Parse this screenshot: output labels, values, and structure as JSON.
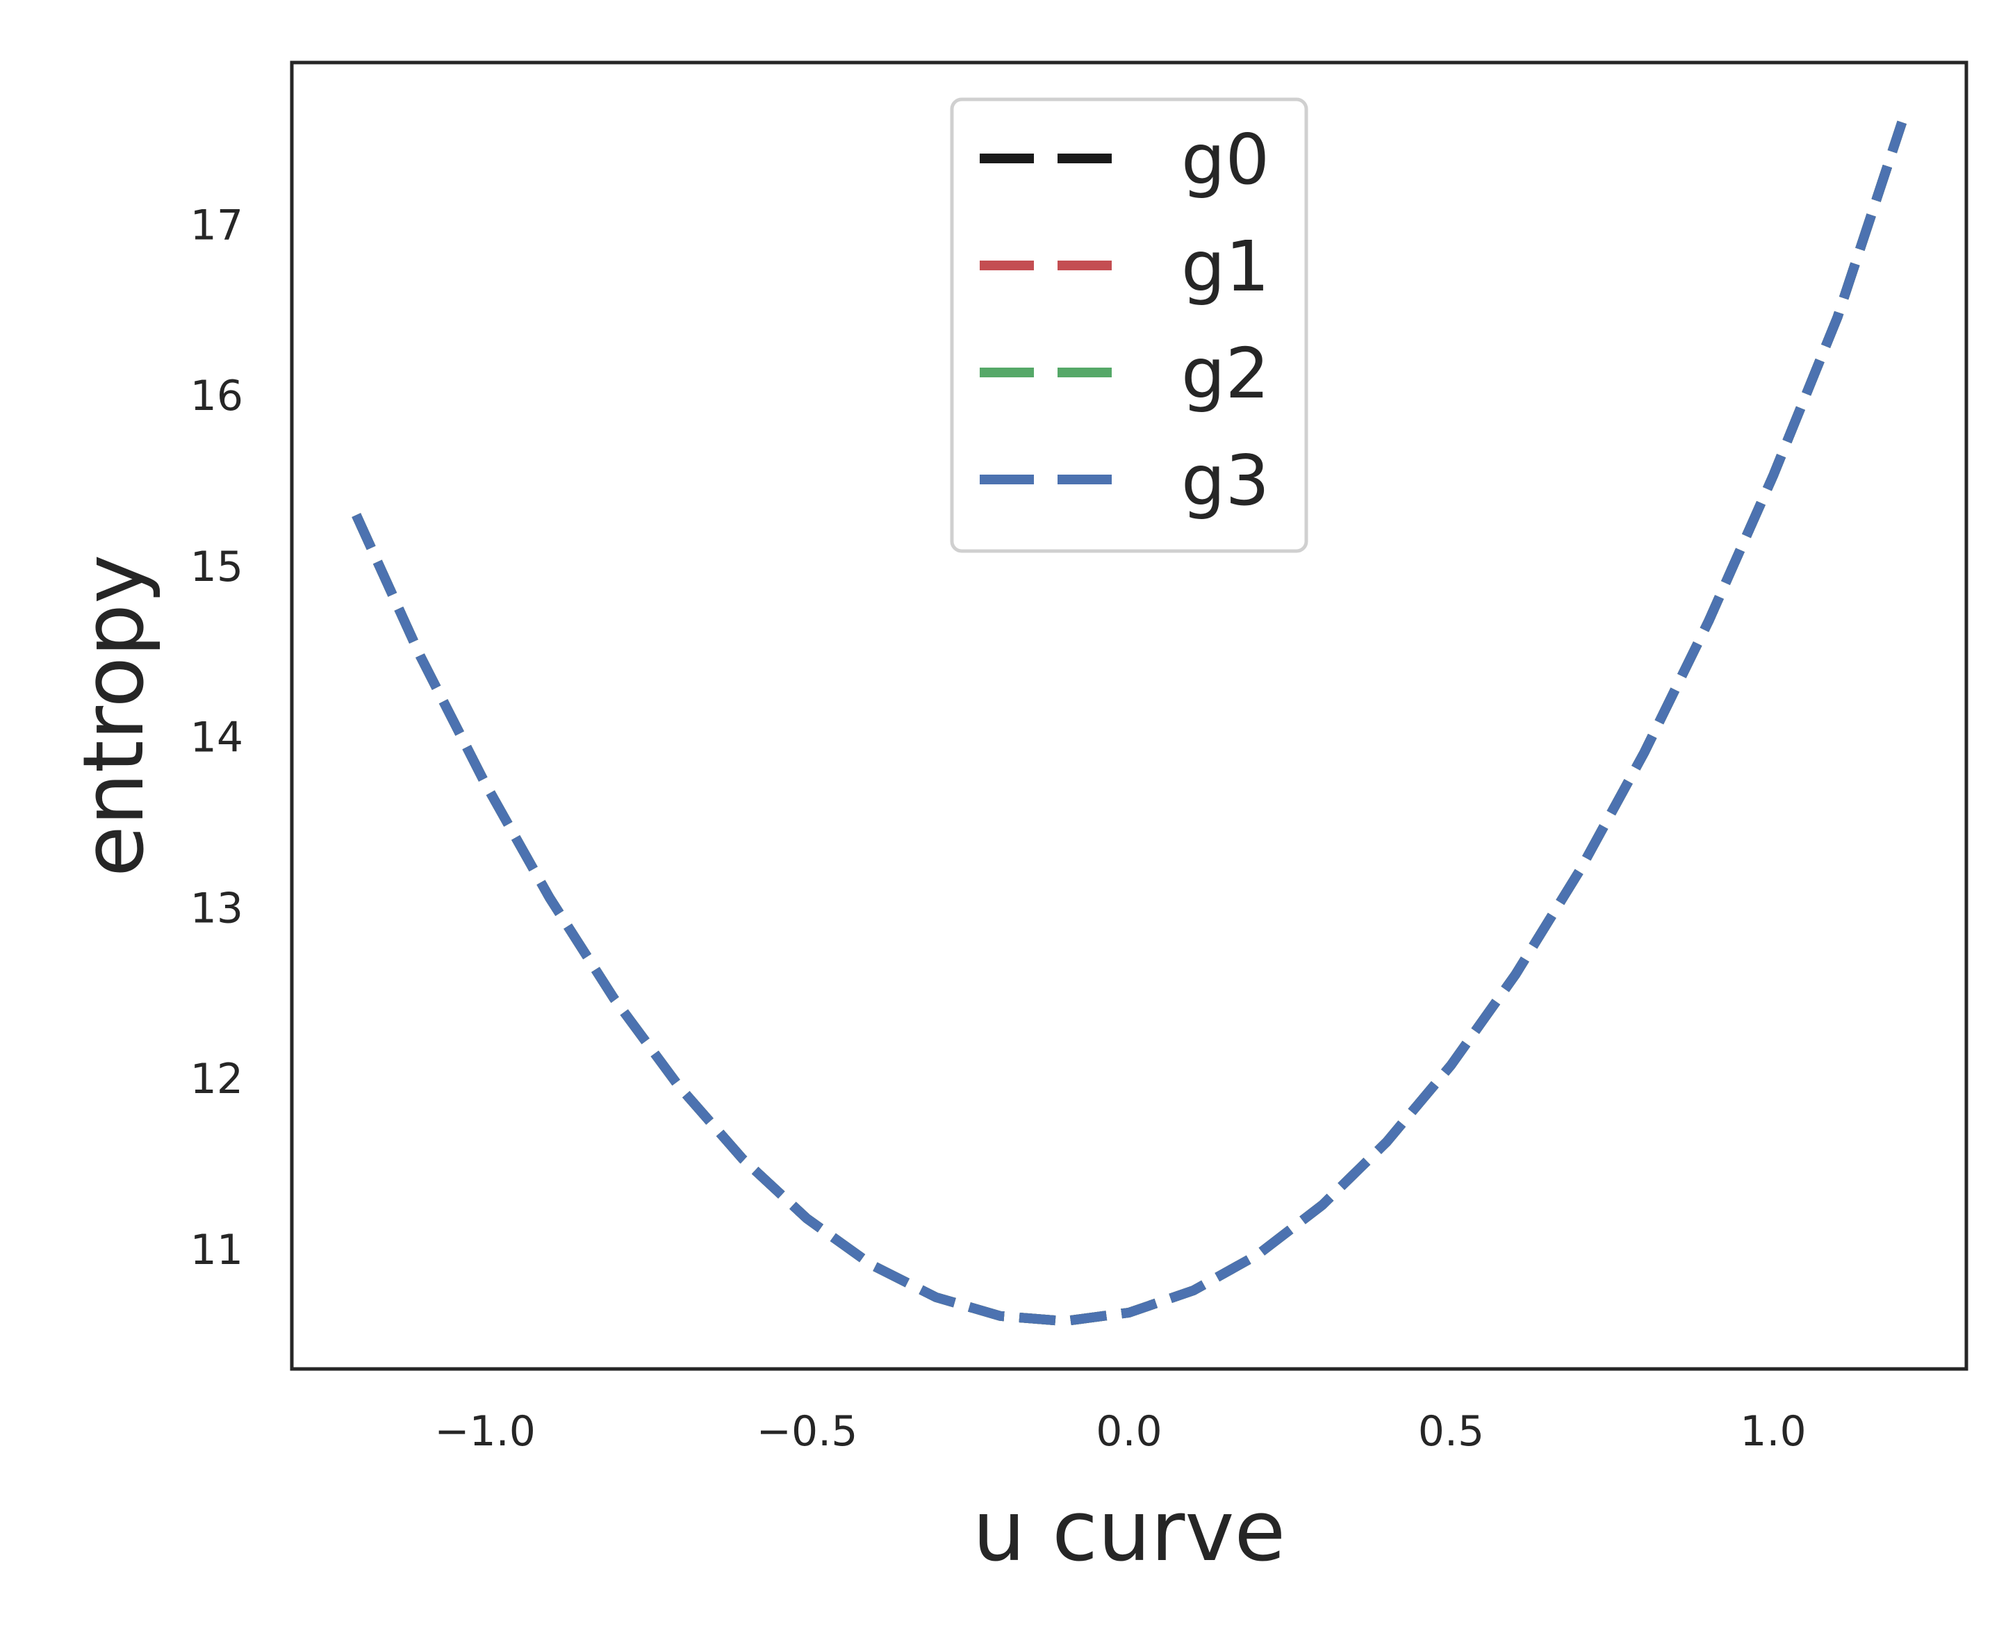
{
  "chart_data": {
    "type": "line",
    "xlabel": "u curve",
    "ylabel": "entropy",
    "xlim": [
      -1.3,
      1.3
    ],
    "ylim": [
      10.3,
      17.95
    ],
    "x_ticks": [
      -1.0,
      -0.5,
      0.0,
      0.5,
      1.0
    ],
    "x_tick_labels": [
      "−1.0",
      "−0.5",
      "0.0",
      "0.5",
      "1.0"
    ],
    "y_ticks": [
      11,
      12,
      13,
      14,
      15,
      16,
      17
    ],
    "y_tick_labels": [
      "11",
      "12",
      "13",
      "14",
      "15",
      "16",
      "17"
    ],
    "grid": false,
    "legend_position": "upper-center",
    "line_style": "dashed",
    "x": [
      -1.2,
      -1.1,
      -1.0,
      -0.9,
      -0.8,
      -0.7,
      -0.6,
      -0.5,
      -0.4,
      -0.3,
      -0.2,
      -0.1,
      0.0,
      0.1,
      0.2,
      0.3,
      0.4,
      0.5,
      0.6,
      0.7,
      0.8,
      0.9,
      1.0,
      1.1,
      1.2
    ],
    "series": [
      {
        "name": "g0",
        "color": "#1a1a1a",
        "values": [
          15.3,
          14.47,
          13.73,
          13.06,
          12.47,
          11.96,
          11.53,
          11.18,
          10.91,
          10.72,
          10.61,
          10.58,
          10.63,
          10.76,
          10.97,
          11.26,
          11.63,
          12.08,
          12.61,
          13.22,
          13.91,
          14.68,
          15.53,
          16.46,
          17.6
        ]
      },
      {
        "name": "g1",
        "color": "#c44e52",
        "values": [
          15.3,
          14.47,
          13.73,
          13.06,
          12.47,
          11.96,
          11.53,
          11.18,
          10.91,
          10.72,
          10.61,
          10.58,
          10.63,
          10.76,
          10.97,
          11.26,
          11.63,
          12.08,
          12.61,
          13.22,
          13.91,
          14.68,
          15.53,
          16.46,
          17.6
        ]
      },
      {
        "name": "g2",
        "color": "#55a868",
        "values": [
          15.3,
          14.47,
          13.73,
          13.06,
          12.47,
          11.96,
          11.53,
          11.18,
          10.91,
          10.72,
          10.61,
          10.58,
          10.63,
          10.76,
          10.97,
          11.26,
          11.63,
          12.08,
          12.61,
          13.22,
          13.91,
          14.68,
          15.53,
          16.46,
          17.6
        ]
      },
      {
        "name": "g3",
        "color": "#4c72b0",
        "values": [
          15.3,
          14.47,
          13.73,
          13.06,
          12.47,
          11.96,
          11.53,
          11.18,
          10.91,
          10.72,
          10.61,
          10.58,
          10.63,
          10.76,
          10.97,
          11.26,
          11.63,
          12.08,
          12.61,
          13.22,
          13.91,
          14.68,
          15.53,
          16.46,
          17.6
        ]
      }
    ]
  }
}
